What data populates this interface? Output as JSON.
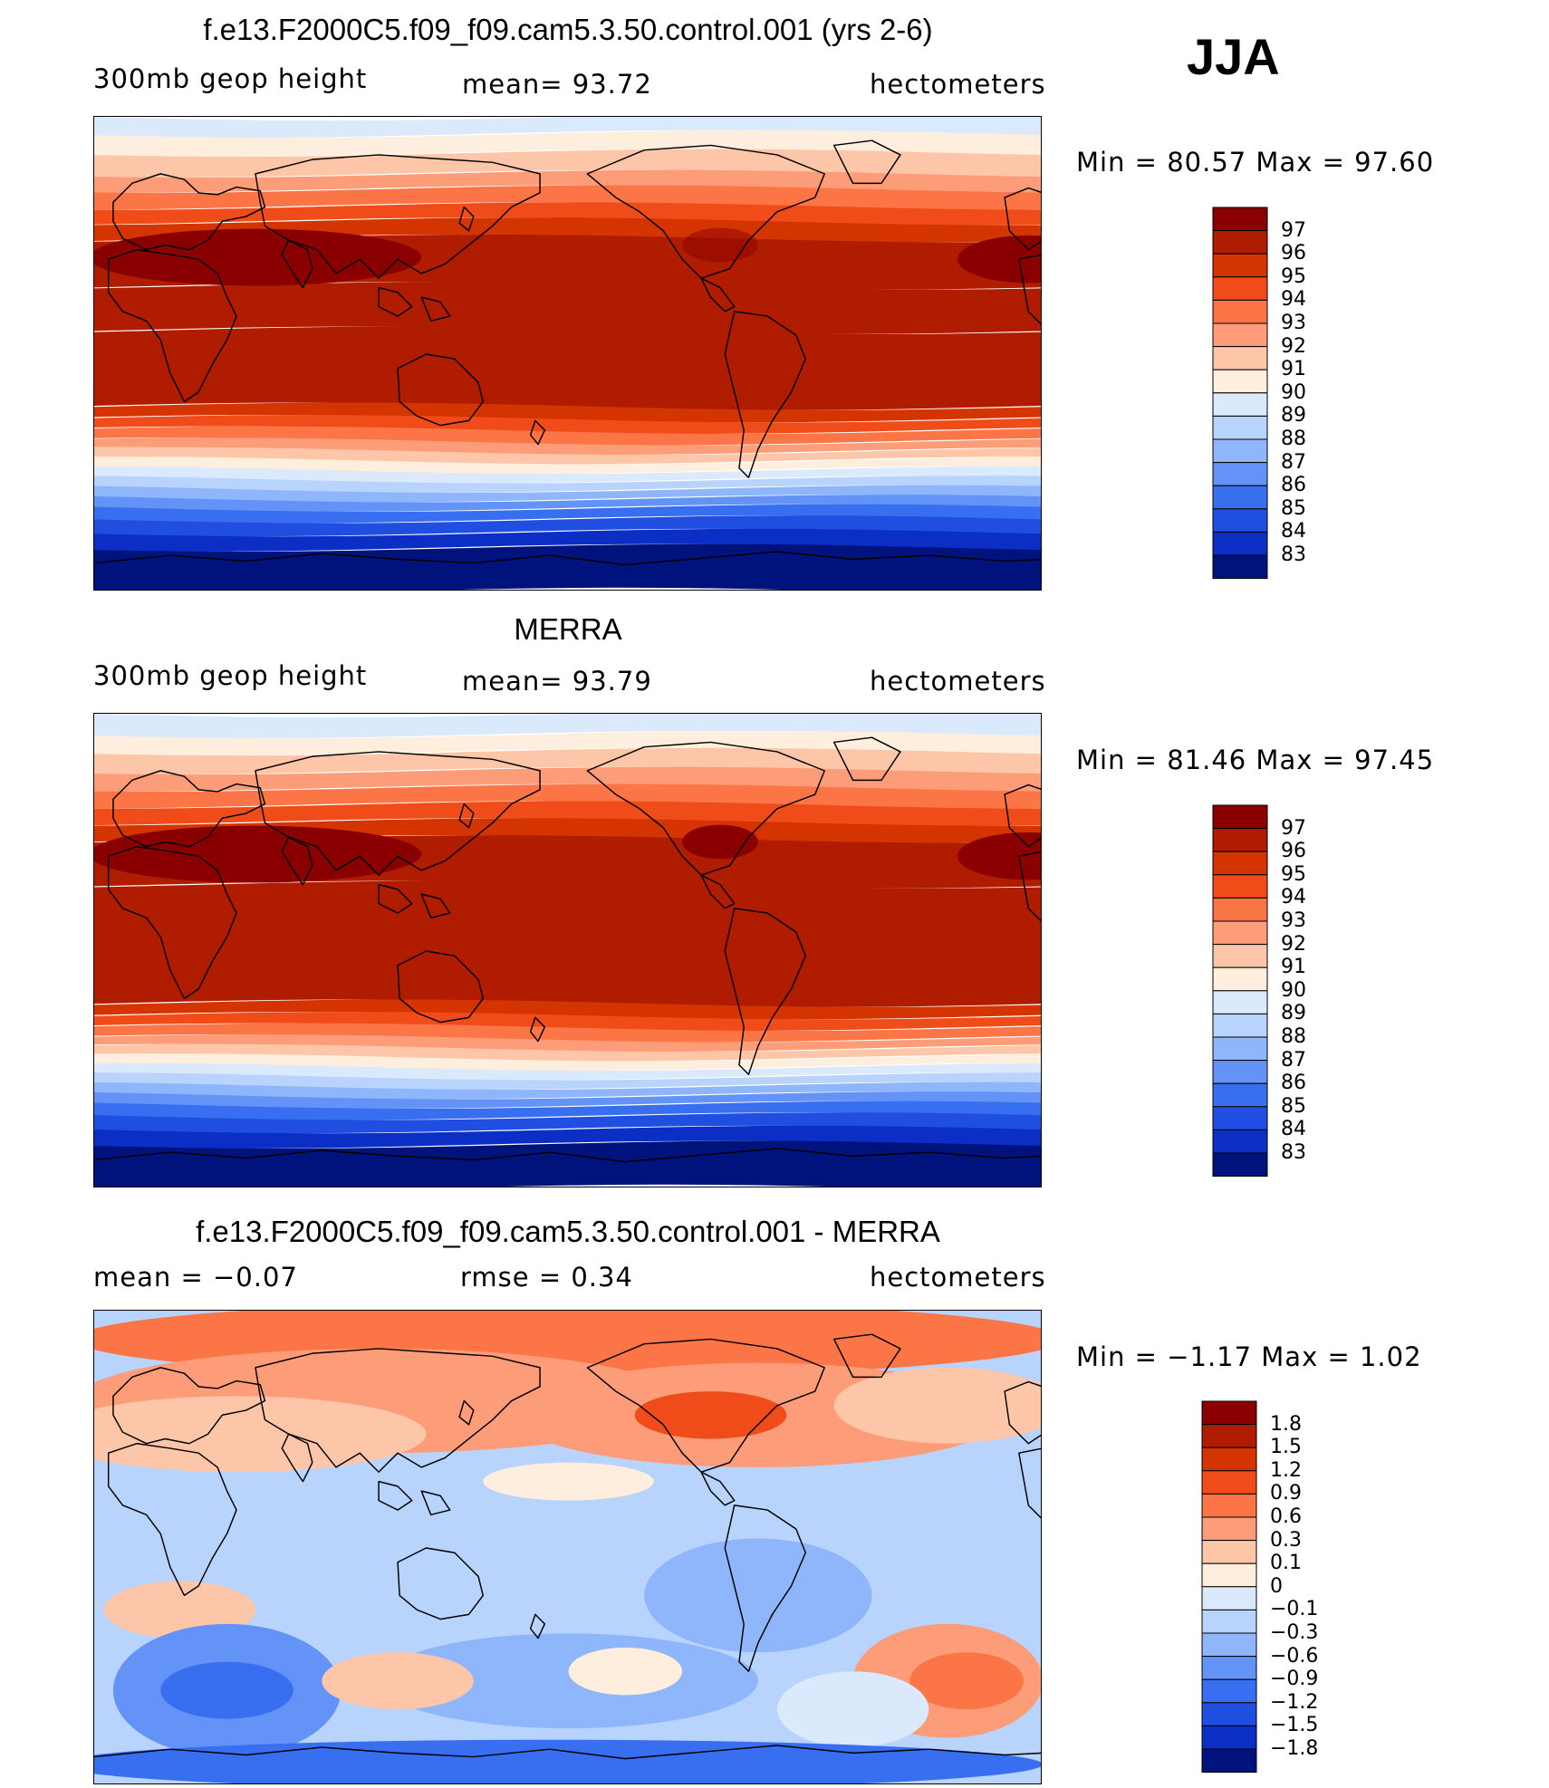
{
  "season": "JJA",
  "panels": [
    {
      "title": "f.e13.F2000C5.f09_f09.cam5.3.50.control.001 (yrs 2-6)",
      "left_label": "300mb geop height",
      "center_label": "mean= 93.72",
      "right_label": "hectometers",
      "minmax": "Min = 80.57 Max = 97.60",
      "colorbar_levels": [
        "97",
        "96",
        "95",
        "94",
        "93",
        "92",
        "91",
        "90",
        "89",
        "88",
        "87",
        "86",
        "85",
        "84",
        "83"
      ],
      "colors": [
        "#8a0000",
        "#b01c00",
        "#d43400",
        "#f04c1a",
        "#fb7546",
        "#fc9c78",
        "#fdc6a8",
        "#feeedd",
        "#dae9fc",
        "#b8d3fc",
        "#8fb6fb",
        "#6493f7",
        "#386ef0",
        "#1f4ee0",
        "#0b2fc4",
        "#00137d"
      ]
    },
    {
      "title": "MERRA",
      "left_label": "300mb geop height",
      "center_label": "mean= 93.79",
      "right_label": "hectometers",
      "minmax": "Min = 81.46 Max = 97.45",
      "colorbar_levels": [
        "97",
        "96",
        "95",
        "94",
        "93",
        "92",
        "91",
        "90",
        "89",
        "88",
        "87",
        "86",
        "85",
        "84",
        "83"
      ],
      "colors": [
        "#8a0000",
        "#b01c00",
        "#d43400",
        "#f04c1a",
        "#fb7546",
        "#fc9c78",
        "#fdc6a8",
        "#feeedd",
        "#dae9fc",
        "#b8d3fc",
        "#8fb6fb",
        "#6493f7",
        "#386ef0",
        "#1f4ee0",
        "#0b2fc4",
        "#00137d"
      ]
    },
    {
      "title": "f.e13.F2000C5.f09_f09.cam5.3.50.control.001 - MERRA",
      "left_label": "mean = −0.07",
      "center_label": "rmse = 0.34",
      "right_label": "hectometers",
      "minmax": "Min = −1.17 Max = 1.02",
      "colorbar_levels": [
        "1.8",
        "1.5",
        "1.2",
        "0.9",
        "0.6",
        "0.3",
        "0.1",
        "0",
        "−0.1",
        "−0.3",
        "−0.6",
        "−0.9",
        "−1.2",
        "−1.5",
        "−1.8"
      ],
      "colors": [
        "#8a0000",
        "#b01c00",
        "#d43400",
        "#f04c1a",
        "#fb7546",
        "#fc9c78",
        "#fdc6a8",
        "#feeedd",
        "#dae9fc",
        "#b8d3fc",
        "#8fb6fb",
        "#6493f7",
        "#386ef0",
        "#1f4ee0",
        "#0b2fc4",
        "#00137d"
      ]
    }
  ]
}
